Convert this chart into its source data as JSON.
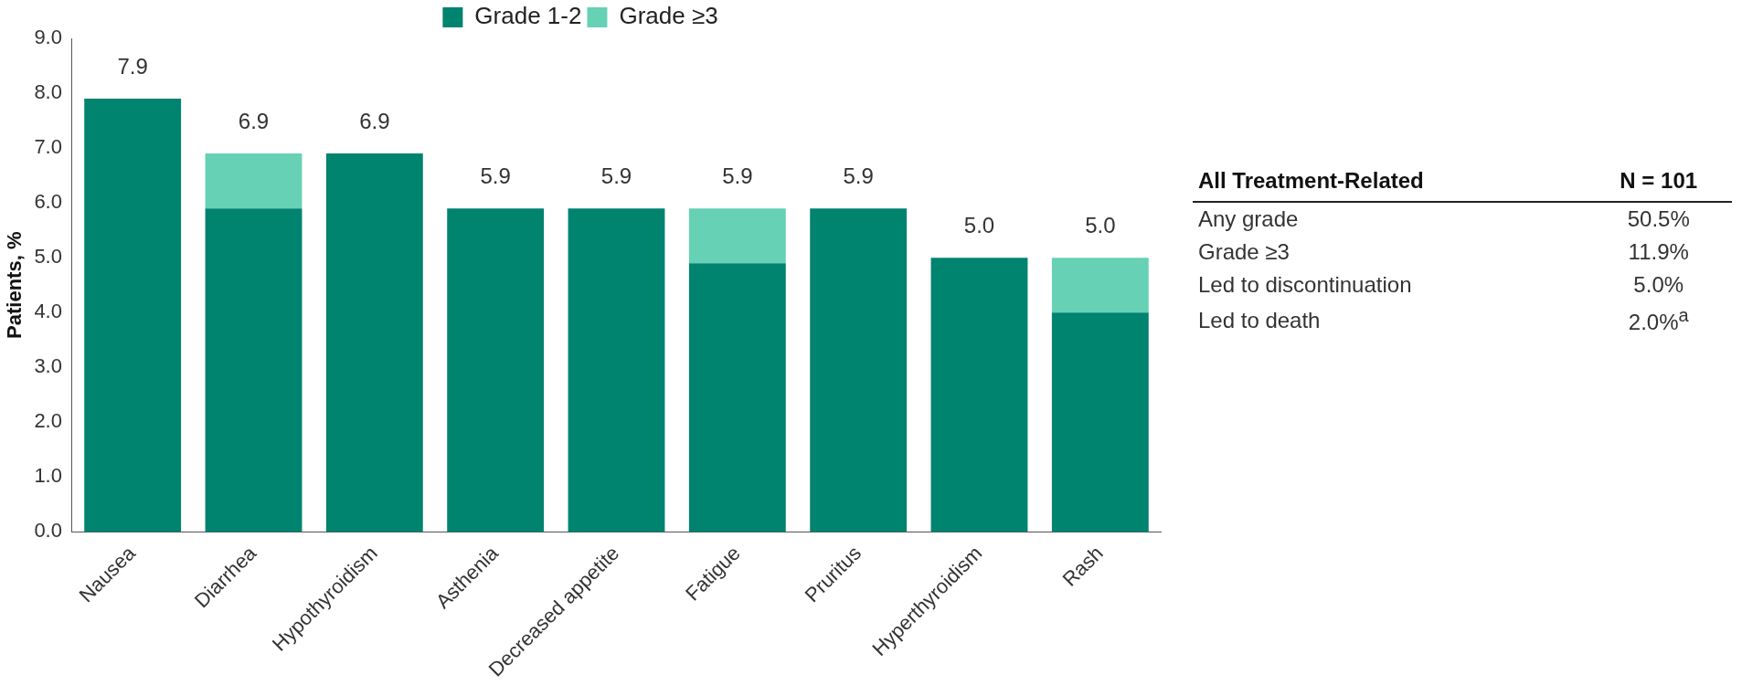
{
  "chart_data": [
    {
      "type": "bar",
      "stacked": true,
      "ylabel": "Patients, %",
      "categories": [
        "Nausea",
        "Diarrhea",
        "Hypothyroidism",
        "Asthenia",
        "Decreased appetite",
        "Fatigue",
        "Pruritus",
        "Hyperthyroidism",
        "Rash"
      ],
      "series": [
        {
          "name": "Grade 1-2",
          "color": "#00836f",
          "values": [
            7.9,
            5.9,
            6.9,
            5.9,
            5.9,
            4.9,
            5.9,
            5.0,
            4.0
          ]
        },
        {
          "name": "Grade ≥3",
          "color": "#66d1b4",
          "values": [
            0,
            1.0,
            0,
            0,
            0,
            1.0,
            0,
            0,
            1.0
          ]
        }
      ],
      "totals": [
        "7.9",
        "6.9",
        "6.9",
        "5.9",
        "5.9",
        "5.9",
        "5.9",
        "5.0",
        "5.0"
      ],
      "ylim": [
        0,
        9
      ],
      "yticks": [
        {
          "value": 0,
          "label": "0.0"
        },
        {
          "value": 1,
          "label": "1.0"
        },
        {
          "value": 2,
          "label": "2.0"
        },
        {
          "value": 3,
          "label": "3.0"
        },
        {
          "value": 4,
          "label": "4.0"
        },
        {
          "value": 5,
          "label": "5.0"
        },
        {
          "value": 6,
          "label": "6.0"
        },
        {
          "value": 7,
          "label": "7.0"
        },
        {
          "value": 8,
          "label": "8.0"
        },
        {
          "value": 9,
          "label": "9.0"
        }
      ],
      "grid": false,
      "legend": "top"
    },
    {
      "type": "other",
      "annotations": [
        "All Treatment-Related",
        "N = 101",
        "Any grade",
        "50.5%",
        "Grade ≥3",
        "11.9%",
        "Led to discontinuation",
        "5.0%",
        "Led to death",
        "2.0%$^{a}$"
      ]
    }
  ]
}
